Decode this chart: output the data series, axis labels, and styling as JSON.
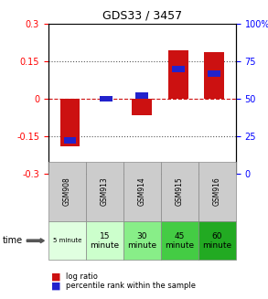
{
  "title": "GDS33 / 3457",
  "samples": [
    "GSM908",
    "GSM913",
    "GSM914",
    "GSM915",
    "GSM916"
  ],
  "log_ratios": [
    -0.19,
    0.0,
    -0.065,
    0.195,
    0.185
  ],
  "percentile_ranks": [
    22,
    50,
    52,
    70,
    67
  ],
  "time_labels": [
    "5 minute",
    "15\nminute",
    "30\nminute",
    "45\nminute",
    "60\nminute"
  ],
  "bar_color": "#cc1111",
  "percentile_color": "#2222cc",
  "ylim": [
    -0.3,
    0.3
  ],
  "yticks_left": [
    -0.3,
    -0.15,
    0,
    0.15,
    0.3
  ],
  "yticks_right": [
    0,
    25,
    50,
    75,
    100
  ],
  "background_color": "#ffffff",
  "plot_bg": "#ffffff",
  "sample_bg": "#cccccc",
  "time_bg_colors": [
    "#e0ffe0",
    "#ccffcc",
    "#88ee88",
    "#44cc44",
    "#22aa22"
  ]
}
